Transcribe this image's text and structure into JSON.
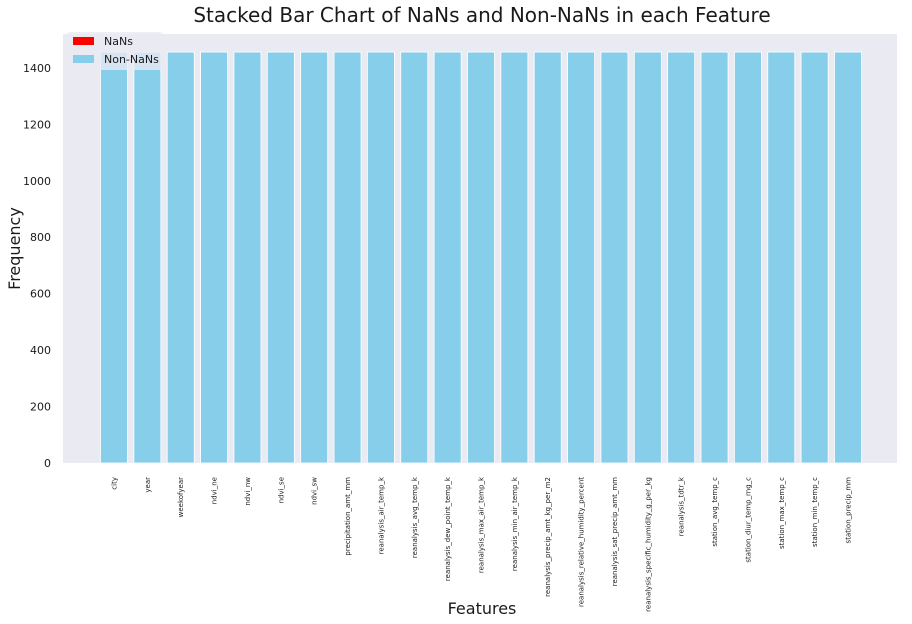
{
  "chart_data": {
    "type": "bar",
    "stacked": true,
    "title": "Stacked Bar Chart of NaNs and Non-NaNs in each Feature",
    "xlabel": "Features",
    "ylabel": "Frequency",
    "ylim": [
      0,
      1520
    ],
    "yticks": [
      0,
      200,
      400,
      600,
      800,
      1000,
      1200,
      1400
    ],
    "grid": false,
    "legend_position": "top-left",
    "categories": [
      "city",
      "year",
      "weekofyear",
      "ndvi_ne",
      "ndvi_nw",
      "ndvi_se",
      "ndvi_sw",
      "precipitation_amt_mm",
      "reanalysis_air_temp_k",
      "reanalysis_avg_temp_k",
      "reanalysis_dew_point_temp_k",
      "reanalysis_max_air_temp_k",
      "reanalysis_min_air_temp_k",
      "reanalysis_precip_amt_kg_per_m2",
      "reanalysis_relative_humidity_percent",
      "reanalysis_sat_precip_amt_mm",
      "reanalysis_specific_humidity_g_per_kg",
      "reanalysis_tdtr_k",
      "station_avg_temp_c",
      "station_diur_temp_rng_c",
      "station_max_temp_c",
      "station_min_temp_c",
      "station_precip_mm"
    ],
    "series": [
      {
        "name": "NaNs",
        "color": "#ff0000",
        "values": [
          0,
          0,
          0,
          0,
          0,
          0,
          0,
          0,
          0,
          0,
          0,
          0,
          0,
          0,
          0,
          0,
          0,
          0,
          0,
          0,
          0,
          0,
          0
        ]
      },
      {
        "name": "Non-NaNs",
        "color": "#87ceeb",
        "values": [
          1456,
          1456,
          1456,
          1456,
          1456,
          1456,
          1456,
          1456,
          1456,
          1456,
          1456,
          1456,
          1456,
          1456,
          1456,
          1456,
          1456,
          1456,
          1456,
          1456,
          1456,
          1456,
          1456
        ]
      }
    ],
    "plot_background": "#eaeaf2"
  }
}
